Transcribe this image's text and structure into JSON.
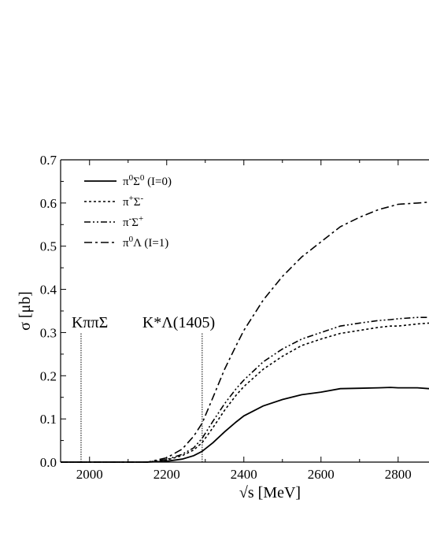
{
  "chart_data": {
    "type": "line",
    "xlabel": "√s [MeV]",
    "ylabel": "σ [μb]",
    "xlim": [
      1925,
      2880
    ],
    "ylim": [
      0,
      0.7
    ],
    "xticks": [
      2000,
      2200,
      2400,
      2600,
      2800
    ],
    "yticks": [
      0.0,
      0.1,
      0.2,
      0.3,
      0.4,
      0.5,
      0.6,
      0.7
    ],
    "ytick_labels": [
      "0.0",
      "0.1",
      "0.2",
      "0.3",
      "0.4",
      "0.5",
      "0.6",
      "0.7"
    ],
    "legend_position": "top-left",
    "grid": false,
    "thresholds": [
      {
        "x": 1978,
        "label": "KππΣ"
      },
      {
        "x": 2292,
        "label": "K*Λ(1405)"
      }
    ],
    "series": [
      {
        "name": "π⁰Σ⁰ (I=0)",
        "name_main": "π",
        "name_sup1": "0",
        "name_main2": "Σ",
        "name_sup2": "0",
        "name_tail": " (I=0)",
        "dash": "solid",
        "x": [
          1925,
          2150,
          2200,
          2240,
          2270,
          2292,
          2320,
          2350,
          2380,
          2400,
          2450,
          2500,
          2550,
          2600,
          2650,
          2700,
          2750,
          2780,
          2800,
          2850,
          2880
        ],
        "y": [
          0.0,
          0.0,
          0.002,
          0.007,
          0.015,
          0.025,
          0.045,
          0.07,
          0.093,
          0.107,
          0.13,
          0.145,
          0.156,
          0.162,
          0.17,
          0.171,
          0.172,
          0.173,
          0.172,
          0.172,
          0.17
        ]
      },
      {
        "name": "π⁺Σ⁻",
        "name_main": "π",
        "name_sup1": "+",
        "name_main2": "Σ",
        "name_sup2": "-",
        "name_tail": "",
        "dash": "dotted",
        "x": [
          1925,
          2150,
          2200,
          2240,
          2270,
          2292,
          2320,
          2350,
          2380,
          2400,
          2450,
          2500,
          2550,
          2600,
          2650,
          2700,
          2750,
          2780,
          2800,
          2850,
          2880
        ],
        "y": [
          0.0,
          0.0,
          0.005,
          0.015,
          0.028,
          0.045,
          0.08,
          0.12,
          0.155,
          0.175,
          0.215,
          0.245,
          0.27,
          0.285,
          0.298,
          0.305,
          0.312,
          0.315,
          0.315,
          0.32,
          0.322
        ]
      },
      {
        "name": "π⁻Σ⁺",
        "name_main": "π",
        "name_sup1": "-",
        "name_main2": "Σ",
        "name_sup2": "+",
        "name_tail": "",
        "dash": "dashdotdot",
        "x": [
          1925,
          2150,
          2200,
          2240,
          2270,
          2292,
          2320,
          2350,
          2380,
          2400,
          2450,
          2500,
          2550,
          2600,
          2650,
          2700,
          2750,
          2780,
          2800,
          2850,
          2880
        ],
        "y": [
          0.0,
          0.0,
          0.006,
          0.018,
          0.033,
          0.055,
          0.095,
          0.135,
          0.17,
          0.19,
          0.232,
          0.262,
          0.285,
          0.3,
          0.315,
          0.322,
          0.328,
          0.33,
          0.332,
          0.335,
          0.335
        ]
      },
      {
        "name": "π⁰Λ (I=1)",
        "name_main": "π",
        "name_sup1": "0",
        "name_main2": "Λ",
        "name_sup2": "",
        "name_tail": " (I=1)",
        "dash": "dashdot",
        "x": [
          1925,
          2150,
          2200,
          2240,
          2270,
          2292,
          2320,
          2350,
          2380,
          2400,
          2450,
          2500,
          2550,
          2600,
          2650,
          2700,
          2750,
          2780,
          2800,
          2850,
          2880
        ],
        "y": [
          0.0,
          0.0,
          0.01,
          0.03,
          0.06,
          0.09,
          0.15,
          0.215,
          0.27,
          0.305,
          0.375,
          0.43,
          0.475,
          0.51,
          0.545,
          0.567,
          0.585,
          0.592,
          0.597,
          0.6,
          0.602
        ]
      }
    ]
  }
}
